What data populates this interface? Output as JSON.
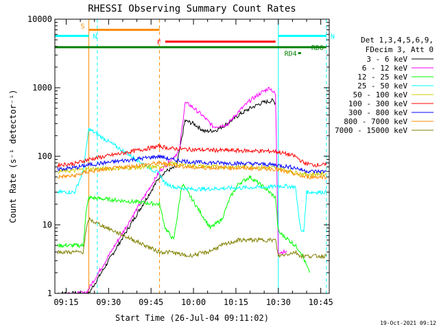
{
  "chart_data": {
    "type": "line",
    "title": "RHESSI Observing Summary Count Rates",
    "xlabel": "Start Time (26-Jul-04 09:11:02)",
    "ylabel": "Count Rate (s⁻¹ detector⁻¹)",
    "y_scale": "log",
    "ylim": [
      1,
      10000
    ],
    "xlim": [
      "09:11",
      "10:48"
    ],
    "x_ticks": [
      "09:15",
      "09:30",
      "09:45",
      "10:00",
      "10:15",
      "10:30",
      "10:45"
    ],
    "y_ticks": [
      "1",
      "10",
      "100",
      "1000",
      "10000"
    ],
    "legend_header": [
      "Det 1,3,4,5,6,9,",
      "FDecim 3, Att 0"
    ],
    "legend_position": "right",
    "footer_date": "19-Oct-2021 09:12",
    "series": [
      {
        "name": "3 - 6 keV",
        "color": "#000000",
        "x": [
          "09:12",
          "09:18",
          "09:22",
          "09:23",
          "09:48",
          "09:50",
          "09:54",
          "09:57",
          "10:00",
          "10:04",
          "10:08",
          "10:12",
          "10:16",
          "10:20",
          "10:24",
          "10:28",
          "10:29"
        ],
        "y": [
          1,
          1,
          1,
          1,
          50,
          60,
          70,
          330,
          300,
          230,
          240,
          300,
          400,
          500,
          600,
          650,
          600
        ]
      },
      {
        "name": "6 - 12 keV",
        "color": "#ff00ff",
        "x": [
          "09:14",
          "09:20",
          "09:22",
          "09:48",
          "09:51",
          "09:55",
          "09:57",
          "09:59",
          "10:03",
          "10:07",
          "10:12",
          "10:16",
          "10:20",
          "10:24",
          "10:27",
          "10:29",
          "10:30",
          "10:33"
        ],
        "y": [
          1,
          1,
          1,
          60,
          80,
          120,
          600,
          550,
          400,
          270,
          290,
          450,
          650,
          850,
          1000,
          800,
          4,
          4
        ]
      },
      {
        "name": "12 - 25 keV",
        "color": "#00ff00",
        "x": [
          "09:12",
          "09:21",
          "09:22",
          "09:23",
          "09:48",
          "09:50",
          "09:53",
          "09:56",
          "10:00",
          "10:03",
          "10:06",
          "10:10",
          "10:13",
          "10:16",
          "10:20",
          "10:25",
          "10:29",
          "10:30",
          "10:36",
          "10:38",
          "10:41"
        ],
        "y": [
          5,
          5,
          15,
          25,
          20,
          9,
          6,
          40,
          22,
          14,
          9,
          12,
          25,
          40,
          50,
          35,
          25,
          8,
          5,
          4,
          2
        ]
      },
      {
        "name": "25 - 50 keV",
        "color": "#00ffff",
        "x": [
          "09:12",
          "09:18",
          "09:21",
          "09:23",
          "09:48",
          "09:50",
          "09:54",
          "10:00",
          "10:10",
          "10:20",
          "10:28",
          "10:30",
          "10:36",
          "10:38",
          "10:39",
          "10:40",
          "10:47"
        ],
        "y": [
          30,
          30,
          60,
          250,
          55,
          40,
          35,
          33,
          34,
          35,
          36,
          37,
          36,
          8,
          8,
          30,
          30
        ]
      },
      {
        "name": "50 - 100 keV",
        "color": "#cccc00",
        "x": [
          "09:12",
          "09:18",
          "09:22",
          "09:48",
          "09:52",
          "10:00",
          "10:10",
          "10:20",
          "10:29",
          "10:32",
          "10:36",
          "10:39",
          "10:42",
          "10:47"
        ],
        "y": [
          60,
          62,
          65,
          70,
          78,
          72,
          70,
          70,
          68,
          64,
          58,
          55,
          55,
          55
        ]
      },
      {
        "name": "100 - 300 keV",
        "color": "#ff0000",
        "x": [
          "09:12",
          "09:18",
          "09:23",
          "09:48",
          "09:52",
          "10:00",
          "10:10",
          "10:20",
          "10:29",
          "10:32",
          "10:36",
          "10:39",
          "10:42",
          "10:47"
        ],
        "y": [
          75,
          78,
          90,
          140,
          130,
          125,
          122,
          120,
          118,
          110,
          100,
          80,
          75,
          75
        ]
      },
      {
        "name": "300 - 800 keV",
        "color": "#0000ff",
        "x": [
          "09:12",
          "09:18",
          "09:23",
          "09:48",
          "09:52",
          "10:00",
          "10:10",
          "10:20",
          "10:29",
          "10:32",
          "10:36",
          "10:39",
          "10:42",
          "10:47"
        ],
        "y": [
          65,
          68,
          75,
          100,
          90,
          82,
          80,
          78,
          75,
          72,
          68,
          62,
          60,
          60
        ]
      },
      {
        "name": "800 - 7000 keV",
        "color": "#ff8c00",
        "x": [
          "09:12",
          "09:18",
          "09:23",
          "09:48",
          "09:52",
          "10:00",
          "10:10",
          "10:20",
          "10:29",
          "10:32",
          "10:36",
          "10:39",
          "10:42",
          "10:47"
        ],
        "y": [
          50,
          52,
          60,
          80,
          75,
          68,
          68,
          67,
          65,
          60,
          55,
          50,
          50,
          50
        ]
      },
      {
        "name": "7000 - 15000 keV",
        "color": "#808000",
        "x": [
          "09:12",
          "09:21",
          "09:22",
          "09:23",
          "09:48",
          "09:52",
          "09:58",
          "10:05",
          "10:10",
          "10:16",
          "10:22",
          "10:29",
          "10:30",
          "10:36",
          "10:38",
          "10:42",
          "10:47"
        ],
        "y": [
          4,
          4,
          8,
          12,
          4,
          4,
          3.5,
          4,
          5,
          6,
          6,
          6,
          3.5,
          4,
          3.5,
          3.5,
          3.5
        ]
      }
    ],
    "state_bars": [
      {
        "label": "S",
        "color": "#ff8c00",
        "x_start": "09:23",
        "x_end": "09:48",
        "y": 7000
      },
      {
        "label": "N",
        "color": "#00ffff",
        "x_start": "09:11",
        "x_end": "09:23",
        "y": 5700
      },
      {
        "label": "N",
        "color": "#00ffff",
        "x_start": "10:30",
        "x_end": "10:47",
        "y": 5700
      },
      {
        "label": "F",
        "color": "#ff0000",
        "x_start": "09:50",
        "x_end": "10:29",
        "y": 4700
      },
      {
        "label": "RD0",
        "color": "#008000",
        "x_start": "09:11",
        "x_end": "10:47",
        "y": 3900
      },
      {
        "label": "RD4",
        "color": "#008000",
        "x_start": "10:37",
        "x_end": "10:38",
        "y": 3200
      }
    ],
    "vlines": [
      {
        "x": "09:11",
        "color": "#00ffff",
        "style": "solid"
      },
      {
        "x": "09:23",
        "color": "#ff8c00",
        "style": "solid"
      },
      {
        "x": "09:26",
        "color": "#00ffff",
        "style": "dashed"
      },
      {
        "x": "09:48",
        "color": "#ff8c00",
        "style": "dashed"
      },
      {
        "x": "10:30",
        "color": "#00ffff",
        "style": "solid"
      },
      {
        "x": "10:47",
        "color": "#00ffff",
        "style": "dashed"
      }
    ]
  }
}
